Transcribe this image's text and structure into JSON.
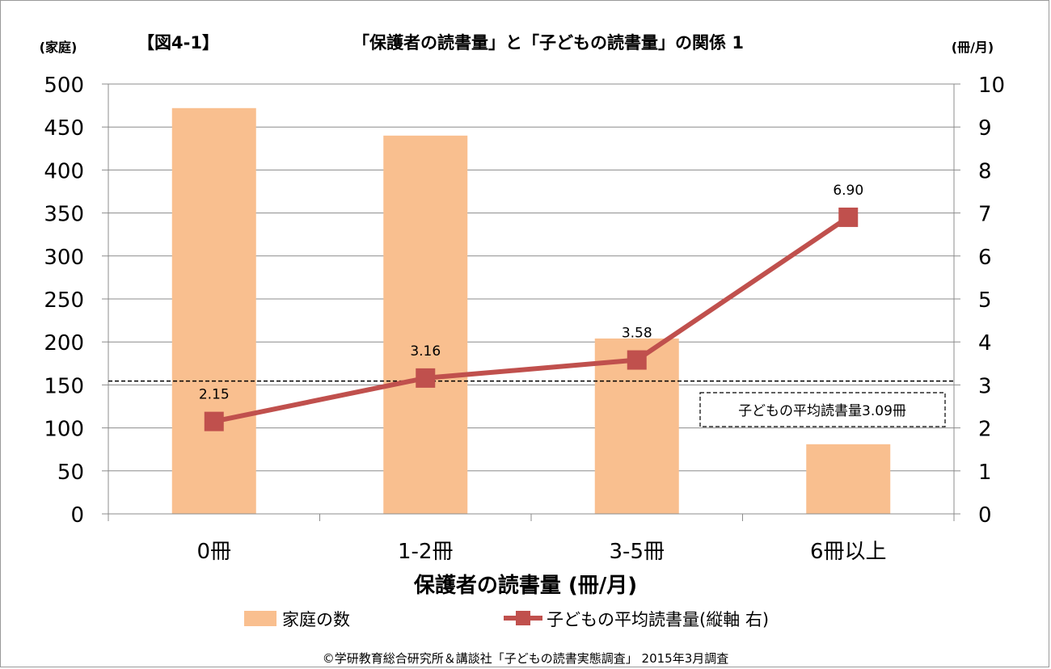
{
  "figure_label": "【図4-1】",
  "chart_data": {
    "type": "bar+line",
    "title": "「保護者の読書量」と「子どもの読書量」の関係 1",
    "xlabel": "保護者の読書量 (冊/月)",
    "ylabel_left": "(家庭)",
    "ylabel_right": "(冊/月)",
    "categories": [
      "0冊",
      "1-2冊",
      "3-5冊",
      "6冊以上"
    ],
    "ylim_left": [
      0,
      500
    ],
    "yticks_left": [
      "0",
      "50",
      "100",
      "150",
      "200",
      "250",
      "300",
      "350",
      "400",
      "450",
      "500"
    ],
    "ylim_right": [
      0,
      10
    ],
    "yticks_right": [
      "0",
      "1",
      "2",
      "3",
      "4",
      "5",
      "6",
      "7",
      "8",
      "9",
      "10"
    ],
    "grid": true,
    "legend_position": "bottom",
    "series": [
      {
        "name": "家庭の数",
        "type": "bar",
        "axis": "left",
        "color": "#F9BF8F",
        "values": [
          472,
          440,
          204,
          81
        ]
      },
      {
        "name": "子どもの平均読書量(縦軸 右)",
        "type": "line",
        "axis": "right",
        "color": "#C0504D",
        "marker": "square",
        "values": [
          2.15,
          3.16,
          3.58,
          6.9
        ],
        "value_labels": [
          "2.15",
          "3.16",
          "3.58",
          "6.90"
        ]
      }
    ],
    "reference_line": {
      "value": 3.09,
      "axis": "right",
      "style": "dashed",
      "label": "子どもの平均読書量3.09冊"
    }
  },
  "footer": "©学研教育総合研究所＆講談社「子どもの読書実態調査」 2015年3月調査"
}
